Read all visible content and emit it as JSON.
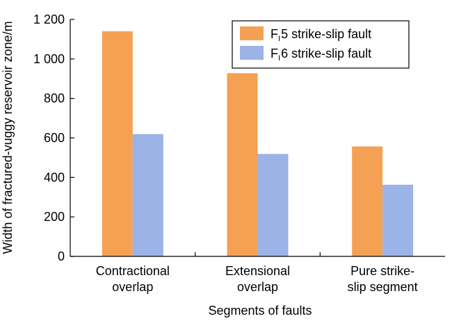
{
  "chart_data": {
    "type": "bar",
    "title": "",
    "xlabel": "Segments of faults",
    "ylabel": "Width of fractured-vuggy reservoir zone/m",
    "categories": [
      [
        "Contractional",
        "overlap"
      ],
      [
        "Extensional",
        "overlap"
      ],
      [
        "Pure strike-",
        "slip segment"
      ]
    ],
    "series": [
      {
        "name": "F 5 strike-slip fault",
        "label_main": "F",
        "label_sub": "I",
        "label_rest": "5 strike-slip fault",
        "color": "#F4A154",
        "values": [
          1140,
          928,
          557
        ]
      },
      {
        "name": "F 6 strike-slip fault",
        "label_main": "F",
        "label_sub": "I",
        "label_rest": "6 strike-slip fault",
        "color": "#9BB3E6",
        "values": [
          619,
          519,
          363
        ]
      }
    ],
    "ylim": [
      0,
      1200
    ],
    "yticks": [
      0,
      200,
      400,
      600,
      800,
      1000,
      1200
    ],
    "ytick_labels": [
      "0",
      "200",
      "400",
      "600",
      "800",
      "1 000",
      "1 200"
    ],
    "grid": false,
    "legend_position": "top-right"
  }
}
